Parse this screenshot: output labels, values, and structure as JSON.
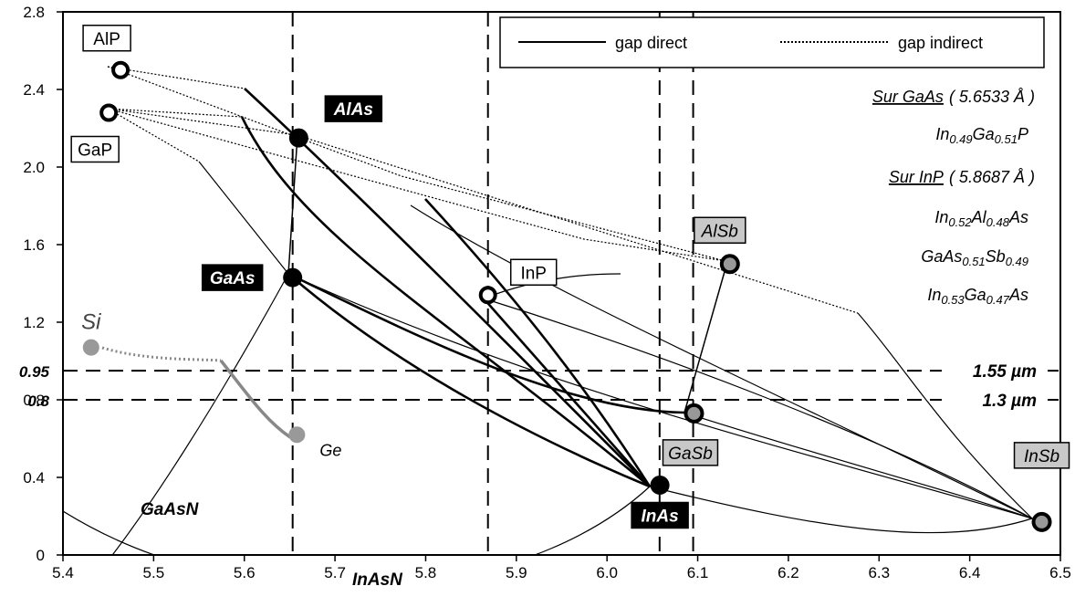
{
  "chart_data": {
    "type": "scatter",
    "title": "",
    "xlabel": "",
    "ylabel": "",
    "xlim": [
      5.4,
      6.5
    ],
    "ylim": [
      0,
      2.8
    ],
    "x_ticks": [
      "5.4",
      "5.5",
      "5.6",
      "5.7",
      "5.8",
      "5.9",
      "6.0",
      "6.1",
      "6.2",
      "6.3",
      "6.4",
      "6.5"
    ],
    "y_ticks": [
      "0",
      "0.4",
      "0.8",
      "1.2",
      "1.6",
      "2.0",
      "2.4",
      "2.8"
    ],
    "y_extra_ticks": [
      {
        "value": 0.95,
        "label": "0.95"
      },
      {
        "value": 0.8,
        "label": "0.8"
      }
    ],
    "legend": {
      "position": "top-right",
      "direct": "gap direct",
      "indirect": "gap indirect"
    },
    "points": [
      {
        "name": "AlP",
        "x": 5.4635,
        "y": 2.5,
        "marker": "open",
        "label_style": "boxed"
      },
      {
        "name": "GaP",
        "x": 5.4505,
        "y": 2.28,
        "marker": "open",
        "label_style": "boxed"
      },
      {
        "name": "AlAs",
        "x": 5.66,
        "y": 2.15,
        "marker": "filled",
        "label_style": "inverse"
      },
      {
        "name": "GaAs",
        "x": 5.6533,
        "y": 1.43,
        "marker": "filled",
        "label_style": "inverse"
      },
      {
        "name": "InP",
        "x": 5.8687,
        "y": 1.34,
        "marker": "open",
        "label_style": "boxed"
      },
      {
        "name": "AlSb",
        "x": 6.1355,
        "y": 1.5,
        "marker": "grey",
        "label_style": "grey-box"
      },
      {
        "name": "GaSb",
        "x": 6.0959,
        "y": 0.73,
        "marker": "grey",
        "label_style": "grey-box"
      },
      {
        "name": "InAs",
        "x": 6.0583,
        "y": 0.36,
        "marker": "filled",
        "label_style": "inverse"
      },
      {
        "name": "InSb",
        "x": 6.4794,
        "y": 0.17,
        "marker": "grey",
        "label_style": "grey-box"
      },
      {
        "name": "Si",
        "x": 5.431,
        "y": 1.07,
        "marker": "si",
        "label_style": "plain"
      },
      {
        "name": "Ge",
        "x": 5.658,
        "y": 0.62,
        "marker": "si",
        "label_style": "plain"
      }
    ],
    "reference_lines": [
      {
        "value": 1.55,
        "axis": "y",
        "y": 0.95,
        "label": "1.55 µm"
      },
      {
        "value": 1.3,
        "axis": "y",
        "y": 0.8,
        "label": "1.3 µm"
      }
    ],
    "vertical_lines": [
      5.6533,
      5.8687,
      6.058,
      6.095
    ],
    "annotations": {
      "sur_gaas_title": "Sur GaAs",
      "sur_gaas_value": "( 5.6533 Å )",
      "ingap": [
        "In",
        "0.49",
        "Ga",
        "0.51",
        "P"
      ],
      "sur_inp_title": "Sur InP",
      "sur_inp_value": "( 5.8687 Å )",
      "inalas": [
        "In",
        "0.52",
        "Al",
        "0.48",
        "As"
      ],
      "gaassb": [
        "GaAs",
        "0.51",
        "Sb",
        "0.49"
      ],
      "ingaas": [
        "In",
        "0.53",
        "Ga",
        "0.47",
        "As"
      ],
      "gaasn": "GaAsN",
      "inasn": "InAsN"
    }
  }
}
